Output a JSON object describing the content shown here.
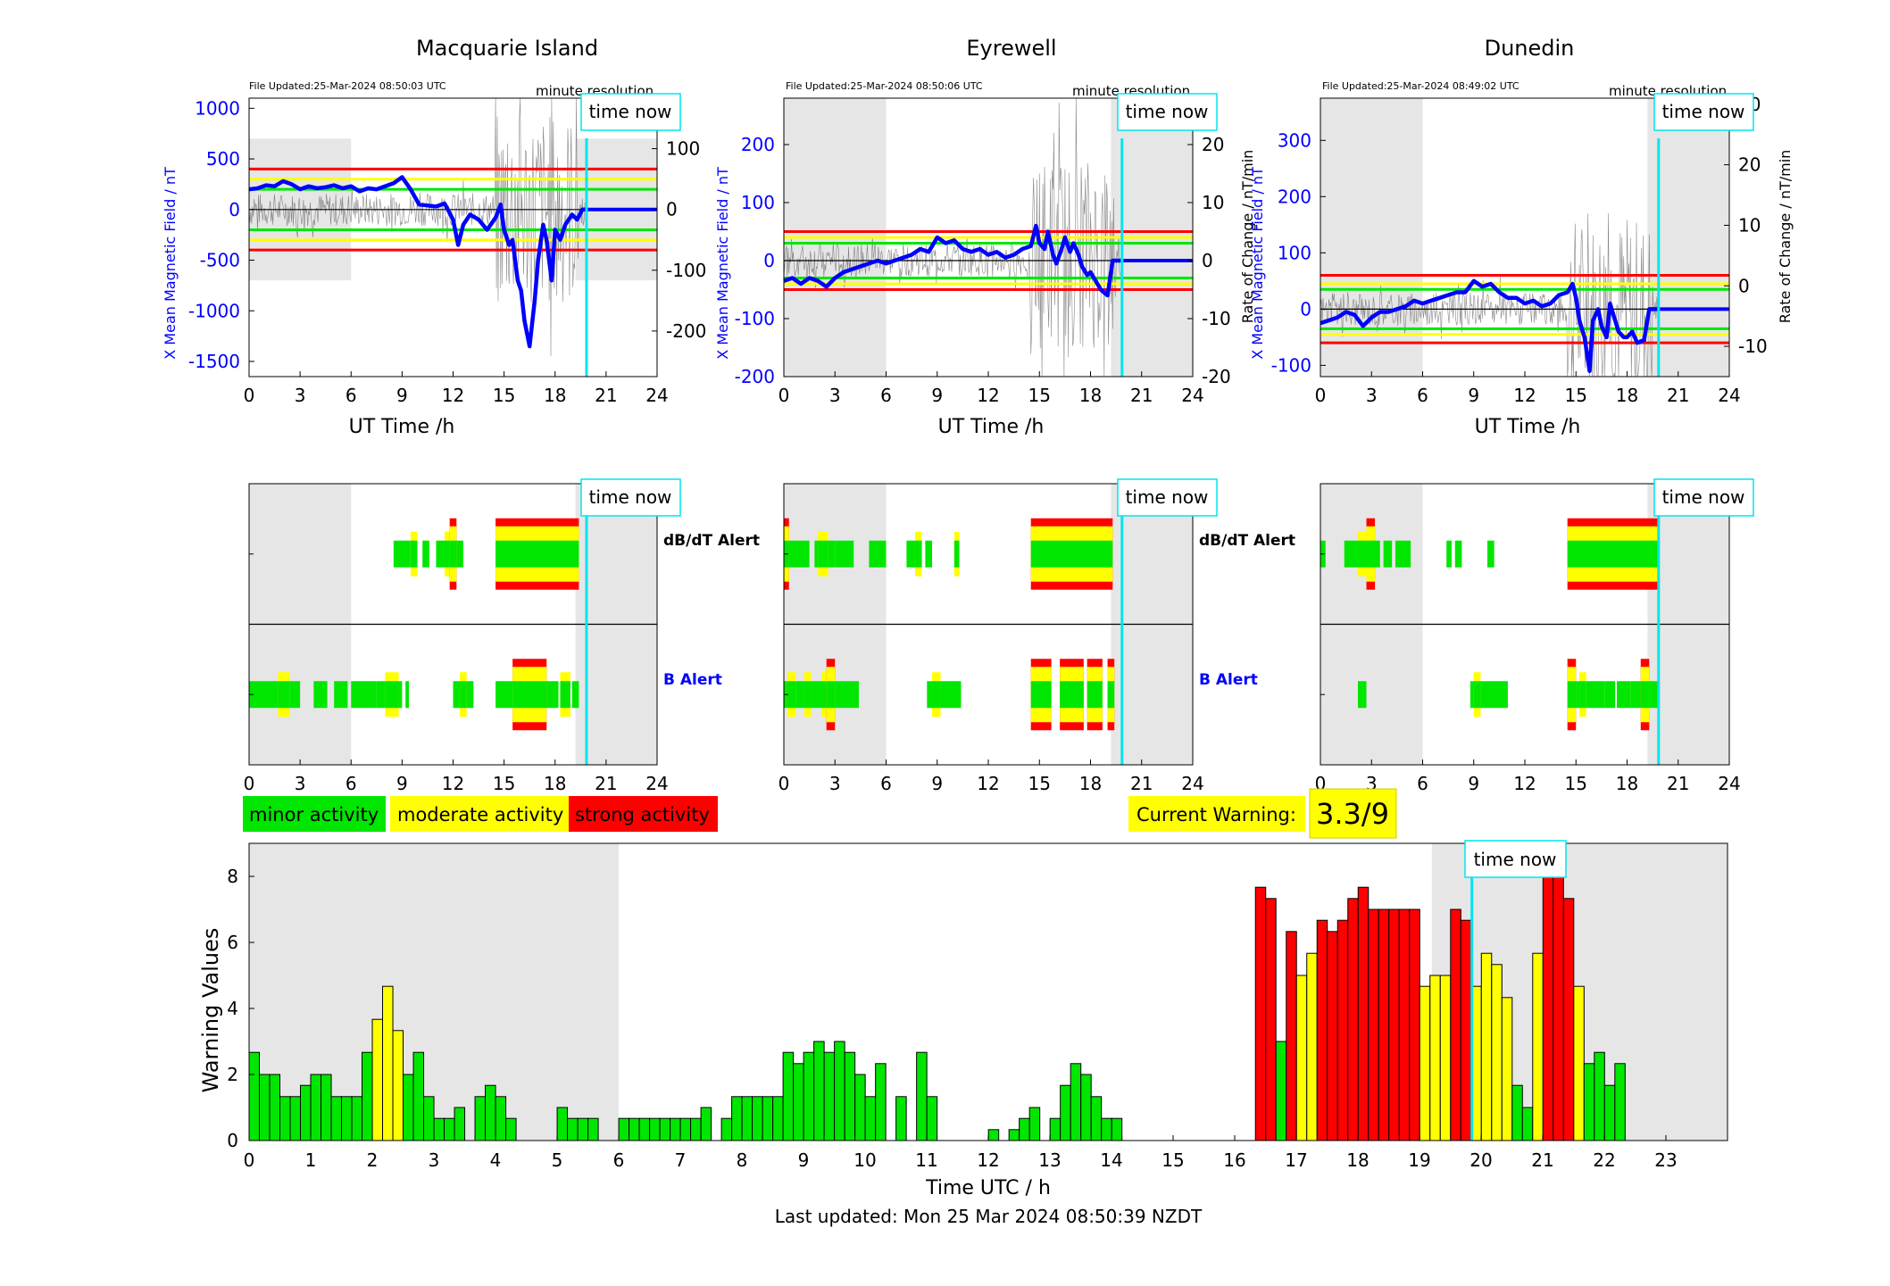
{
  "colors": {
    "minor": "#00e600",
    "moderate": "#ffff00",
    "strong": "#ff0000",
    "now": "#00e5ee",
    "field": "#0000ff",
    "shade": "#e6e6e6"
  },
  "labels": {
    "time_now": "time now",
    "ut_xlabel": "UT Time /h",
    "minute_resolution": "minute resolution",
    "x_field_label": "X Mean Magnetic Field / nT",
    "roc_label": "Rate of Change / nT/min",
    "dbdt_alert": "dB/dT Alert",
    "b_alert": "B Alert",
    "current_warning_label": "Current Warning:",
    "current_warning_value": "3.3/9",
    "last_updated": "Last updated: Mon 25 Mar 2024 08:50:39 NZDT"
  },
  "legend": [
    "minor activity",
    "moderate activity",
    "strong activity"
  ],
  "time_now_h": 19.85,
  "chart_data": [
    {
      "type": "line",
      "title": "Macquarie Island",
      "file_updated": "File Updated:25-Mar-2024 08:50:03 UTC",
      "xlabel": "UT Time /h",
      "ylabel": "X Mean Magnetic Field / nT",
      "y2label": "",
      "xlim": [
        0,
        24
      ],
      "xticks": [
        0,
        3,
        6,
        9,
        12,
        15,
        18,
        21,
        24
      ],
      "ylim": [
        -1650,
        1100
      ],
      "yticks": [
        1000,
        500,
        0,
        -500,
        -1000,
        -1500
      ],
      "y2lim": [
        -275,
        183
      ],
      "y2ticks": [
        100,
        0,
        -100,
        -200
      ],
      "thresholds": {
        "green": [
          200,
          -200
        ],
        "yellow": [
          300,
          -300
        ],
        "red": [
          400,
          -400
        ]
      },
      "shading": [
        [
          0,
          6
        ],
        [
          19.2,
          24
        ]
      ],
      "shade_y": [
        700,
        -700
      ],
      "series": [
        {
          "values_x_h": [
            0,
            0.5,
            1,
            1.5,
            2,
            2.5,
            3,
            3.5,
            4,
            4.5,
            5,
            5.5,
            6,
            6.5,
            7,
            7.5,
            8,
            8.5,
            9,
            9.5,
            10,
            10.5,
            11,
            11.5,
            12,
            12.3,
            12.6,
            13,
            13.5,
            14,
            14.5,
            14.8,
            15,
            15.3,
            15.5,
            15.8,
            16,
            16.2,
            16.5,
            16.8,
            17,
            17.3,
            17.5,
            17.8,
            18,
            18.3,
            18.6,
            19,
            19.3,
            19.6,
            19.85
          ],
          "values_y_nT": [
            200,
            210,
            240,
            230,
            280,
            250,
            200,
            230,
            210,
            220,
            240,
            210,
            230,
            180,
            210,
            200,
            230,
            260,
            320,
            200,
            50,
            40,
            30,
            60,
            -100,
            -350,
            -150,
            -50,
            -100,
            -200,
            -80,
            50,
            -200,
            -350,
            -300,
            -700,
            -800,
            -1100,
            -1350,
            -900,
            -500,
            -150,
            -300,
            -700,
            -200,
            -300,
            -150,
            -50,
            -100,
            0,
            0
          ]
        }
      ]
    },
    {
      "type": "line",
      "title": "Eyrewell",
      "file_updated": "File Updated:25-Mar-2024 08:50:06 UTC",
      "xlabel": "UT Time /h",
      "ylabel": "X Mean Magnetic Field / nT",
      "y2label": "Rate of Change / nT/min",
      "xlim": [
        0,
        24
      ],
      "xticks": [
        0,
        3,
        6,
        9,
        12,
        15,
        18,
        21,
        24
      ],
      "ylim": [
        -200,
        280
      ],
      "yticks": [
        200,
        100,
        0,
        -100,
        -200
      ],
      "y2lim": [
        -20,
        28
      ],
      "y2ticks": [
        20,
        10,
        0,
        -10,
        -20
      ],
      "thresholds": {
        "green": [
          30,
          -30
        ],
        "yellow": [
          40,
          -40
        ],
        "red": [
          50,
          -50
        ]
      },
      "shading": [
        [
          0,
          6
        ],
        [
          19.2,
          24
        ]
      ],
      "shade_y": [
        280,
        -200
      ],
      "series": [
        {
          "values_x_h": [
            0,
            0.5,
            1,
            1.5,
            2,
            2.5,
            3,
            3.5,
            4,
            4.5,
            5,
            5.5,
            6,
            6.5,
            7,
            7.5,
            8,
            8.5,
            9,
            9.5,
            10,
            10.5,
            11,
            11.5,
            12,
            12.5,
            13,
            13.5,
            14,
            14.5,
            14.8,
            15,
            15.3,
            15.5,
            15.8,
            16,
            16.3,
            16.5,
            16.8,
            17,
            17.3,
            17.5,
            17.8,
            18,
            18.3,
            18.6,
            19,
            19.3,
            19.6,
            19.85
          ],
          "values_y_nT": [
            -35,
            -30,
            -40,
            -30,
            -35,
            -45,
            -30,
            -20,
            -15,
            -10,
            -5,
            0,
            -5,
            0,
            5,
            10,
            20,
            15,
            40,
            30,
            35,
            20,
            15,
            20,
            10,
            15,
            5,
            10,
            20,
            25,
            60,
            30,
            20,
            50,
            10,
            -5,
            20,
            40,
            15,
            30,
            10,
            -10,
            -25,
            -20,
            -35,
            -50,
            -60,
            0,
            0,
            0
          ]
        }
      ]
    },
    {
      "type": "line",
      "title": "Dunedin",
      "file_updated": "File Updated:25-Mar-2024 08:49:02 UTC",
      "xlabel": "UT Time /h",
      "ylabel": "X Mean Magnetic Field / nT",
      "y2label": "Rate of Change / nT/min",
      "xlim": [
        0,
        24
      ],
      "xticks": [
        0,
        3,
        6,
        9,
        12,
        15,
        18,
        21,
        24
      ],
      "ylim": [
        -120,
        375
      ],
      "yticks": [
        300,
        200,
        100,
        0,
        -100
      ],
      "y2lim": [
        -15,
        31
      ],
      "y2ticks": [
        30,
        20,
        10,
        0,
        -10
      ],
      "thresholds": {
        "green": [
          35,
          -35
        ],
        "yellow": [
          45,
          -45
        ],
        "red": [
          60,
          -60
        ]
      },
      "shading": [
        [
          0,
          6
        ],
        [
          19.2,
          24
        ]
      ],
      "shade_y": [
        375,
        -120
      ],
      "series": [
        {
          "values_x_h": [
            0,
            0.5,
            1,
            1.5,
            2,
            2.5,
            3,
            3.5,
            4,
            4.5,
            5,
            5.5,
            6,
            6.5,
            7,
            7.5,
            8,
            8.5,
            9,
            9.5,
            10,
            10.5,
            11,
            11.5,
            12,
            12.5,
            13,
            13.5,
            14,
            14.5,
            14.8,
            15,
            15.2,
            15.5,
            15.8,
            16,
            16.3,
            16.5,
            16.8,
            17,
            17.3,
            17.5,
            17.8,
            18,
            18.3,
            18.6,
            19,
            19.3,
            19.6,
            19.85
          ],
          "values_y_nT": [
            -25,
            -20,
            -15,
            -5,
            -10,
            -30,
            -15,
            -5,
            -5,
            0,
            5,
            15,
            10,
            15,
            20,
            25,
            30,
            30,
            50,
            40,
            45,
            30,
            20,
            20,
            10,
            15,
            5,
            10,
            25,
            30,
            45,
            20,
            -20,
            -50,
            -110,
            -20,
            0,
            -30,
            -50,
            10,
            -20,
            -40,
            -50,
            -50,
            -40,
            -60,
            -55,
            0,
            0,
            0
          ]
        }
      ]
    },
    {
      "type": "bar",
      "title": "",
      "xlabel": "Time UTC / h",
      "ylabel": "Warning Values",
      "xlim": [
        0,
        24
      ],
      "xticks": [
        0,
        1,
        2,
        3,
        4,
        5,
        6,
        7,
        8,
        9,
        10,
        11,
        12,
        13,
        14,
        15,
        16,
        17,
        18,
        19,
        20,
        21,
        22,
        23
      ],
      "ylim": [
        0,
        9
      ],
      "yticks": [
        0,
        2,
        4,
        6,
        8
      ],
      "shading": [
        [
          0,
          6
        ],
        [
          19.2,
          24
        ]
      ],
      "bin_hours": 0.1667,
      "values": [
        2.67,
        2,
        2,
        1.33,
        1.33,
        1.67,
        2,
        2,
        1.33,
        1.33,
        1.33,
        2.67,
        3.67,
        4.67,
        3.33,
        2,
        2.67,
        1.33,
        0.67,
        0.67,
        1,
        0,
        1.33,
        1.67,
        1.33,
        0.67,
        0,
        0,
        0,
        0,
        1,
        0.67,
        0.67,
        0.67,
        0,
        0,
        0.67,
        0.67,
        0.67,
        0.67,
        0.67,
        0.67,
        0.67,
        0.67,
        1,
        0,
        0.67,
        1.33,
        1.33,
        1.33,
        1.33,
        1.33,
        2.67,
        2.33,
        2.67,
        3,
        2.67,
        3,
        2.67,
        2,
        1.33,
        2.33,
        0,
        1.33,
        0,
        2.67,
        1.33,
        0,
        0,
        0,
        0,
        0,
        0.33,
        0,
        0.33,
        0.67,
        1,
        0,
        0.67,
        1.67,
        2.33,
        2,
        1.33,
        0.67,
        0.67,
        0,
        0,
        0,
        0,
        0,
        0,
        0,
        0,
        0,
        0,
        0,
        0,
        0,
        7.67,
        7.33,
        3,
        6.33,
        5,
        5.67,
        6.67,
        6.33,
        6.67,
        7.33,
        7.67,
        7,
        7,
        7,
        7,
        7,
        4.67,
        5,
        5,
        7,
        6.67,
        4.67,
        5.67,
        5.33,
        4.33,
        1.67,
        1,
        5.67,
        8,
        9,
        7.33,
        4.67,
        2.33,
        2.67,
        1.67,
        2.33
      ],
      "levels": [
        "g",
        "g",
        "g",
        "g",
        "g",
        "g",
        "g",
        "g",
        "g",
        "g",
        "g",
        "g",
        "y",
        "y",
        "y",
        "g",
        "g",
        "g",
        "g",
        "g",
        "g",
        "g",
        "g",
        "g",
        "g",
        "g",
        "g",
        "g",
        "g",
        "g",
        "g",
        "g",
        "g",
        "g",
        "g",
        "g",
        "g",
        "g",
        "g",
        "g",
        "g",
        "g",
        "g",
        "g",
        "g",
        "g",
        "g",
        "g",
        "g",
        "g",
        "g",
        "g",
        "g",
        "g",
        "g",
        "g",
        "g",
        "g",
        "g",
        "g",
        "g",
        "g",
        "g",
        "g",
        "g",
        "g",
        "g",
        "g",
        "g",
        "g",
        "g",
        "g",
        "g",
        "g",
        "g",
        "g",
        "g",
        "g",
        "g",
        "g",
        "g",
        "g",
        "g",
        "g",
        "g",
        "g",
        "g",
        "g",
        "g",
        "g",
        "g",
        "g",
        "g",
        "g",
        "g",
        "g",
        "g",
        "g",
        "r",
        "r",
        "g",
        "r",
        "y",
        "y",
        "r",
        "r",
        "r",
        "r",
        "r",
        "r",
        "r",
        "r",
        "r",
        "r",
        "y",
        "y",
        "y",
        "r",
        "r",
        "y",
        "y",
        "y",
        "y",
        "g",
        "g",
        "y",
        "r",
        "r",
        "r",
        "y",
        "g",
        "g",
        "g",
        "g"
      ]
    }
  ],
  "alerts": [
    {
      "dbdt": [
        [
          8.5,
          9.5,
          "g"
        ],
        [
          9.5,
          9.9,
          "y"
        ],
        [
          10.2,
          10.6,
          "g"
        ],
        [
          11,
          12.6,
          "g"
        ],
        [
          11.5,
          11.8,
          "y"
        ],
        [
          11.8,
          12.2,
          "r"
        ],
        [
          14.5,
          19.4,
          "r"
        ]
      ],
      "b": [
        [
          0,
          3,
          "g"
        ],
        [
          1.7,
          2.4,
          "y"
        ],
        [
          3.8,
          4.6,
          "g"
        ],
        [
          5,
          5.8,
          "g"
        ],
        [
          6,
          7.5,
          "g"
        ],
        [
          7.5,
          9,
          "g"
        ],
        [
          8,
          8.8,
          "y"
        ],
        [
          9.2,
          9.4,
          "g"
        ],
        [
          12,
          13.2,
          "g"
        ],
        [
          12.4,
          12.8,
          "y"
        ],
        [
          14.5,
          15.5,
          "g"
        ],
        [
          15.5,
          17.5,
          "r"
        ],
        [
          17.5,
          18.2,
          "g"
        ],
        [
          18.3,
          18.9,
          "y"
        ],
        [
          19,
          19.4,
          "g"
        ]
      ]
    },
    {
      "dbdt": [
        [
          0,
          0.3,
          "r"
        ],
        [
          0.3,
          1.5,
          "g"
        ],
        [
          1.8,
          3,
          "g"
        ],
        [
          2,
          2.6,
          "y"
        ],
        [
          3,
          4.1,
          "g"
        ],
        [
          5,
          6,
          "g"
        ],
        [
          7.2,
          7.8,
          "g"
        ],
        [
          7.7,
          8.1,
          "y"
        ],
        [
          8.3,
          8.7,
          "g"
        ],
        [
          10,
          10.3,
          "y"
        ],
        [
          14.5,
          19.3,
          "r"
        ]
      ],
      "b": [
        [
          0,
          2.5,
          "g"
        ],
        [
          0.2,
          0.7,
          "y"
        ],
        [
          1.2,
          1.6,
          "y"
        ],
        [
          2.5,
          4.4,
          "g"
        ],
        [
          2.2,
          2.6,
          "y"
        ],
        [
          2.5,
          3,
          "r"
        ],
        [
          8.4,
          10.4,
          "g"
        ],
        [
          8.7,
          9.2,
          "y"
        ],
        [
          14.5,
          15.7,
          "r"
        ],
        [
          16.2,
          17.6,
          "r"
        ],
        [
          17.8,
          18.7,
          "r"
        ],
        [
          19,
          19.4,
          "r"
        ]
      ]
    },
    {
      "dbdt": [
        [
          0,
          0.3,
          "g"
        ],
        [
          1.4,
          2.5,
          "g"
        ],
        [
          2.2,
          2.7,
          "y"
        ],
        [
          2.7,
          3.2,
          "r"
        ],
        [
          3,
          3.5,
          "g"
        ],
        [
          3.7,
          4.2,
          "g"
        ],
        [
          4.4,
          5.3,
          "g"
        ],
        [
          7.4,
          7.7,
          "g"
        ],
        [
          7.9,
          8.3,
          "g"
        ],
        [
          9.8,
          10.2,
          "g"
        ],
        [
          14.5,
          19.8,
          "r"
        ]
      ],
      "b": [
        [
          2.2,
          2.7,
          "g"
        ],
        [
          8.8,
          11,
          "g"
        ],
        [
          9,
          9.4,
          "y"
        ],
        [
          14.5,
          15,
          "r"
        ],
        [
          15,
          16.7,
          "g"
        ],
        [
          15.2,
          15.6,
          "y"
        ],
        [
          16.7,
          17.3,
          "g"
        ],
        [
          17.4,
          18.2,
          "g"
        ],
        [
          18.2,
          19.9,
          "g"
        ],
        [
          18.8,
          19.3,
          "r"
        ]
      ]
    }
  ]
}
